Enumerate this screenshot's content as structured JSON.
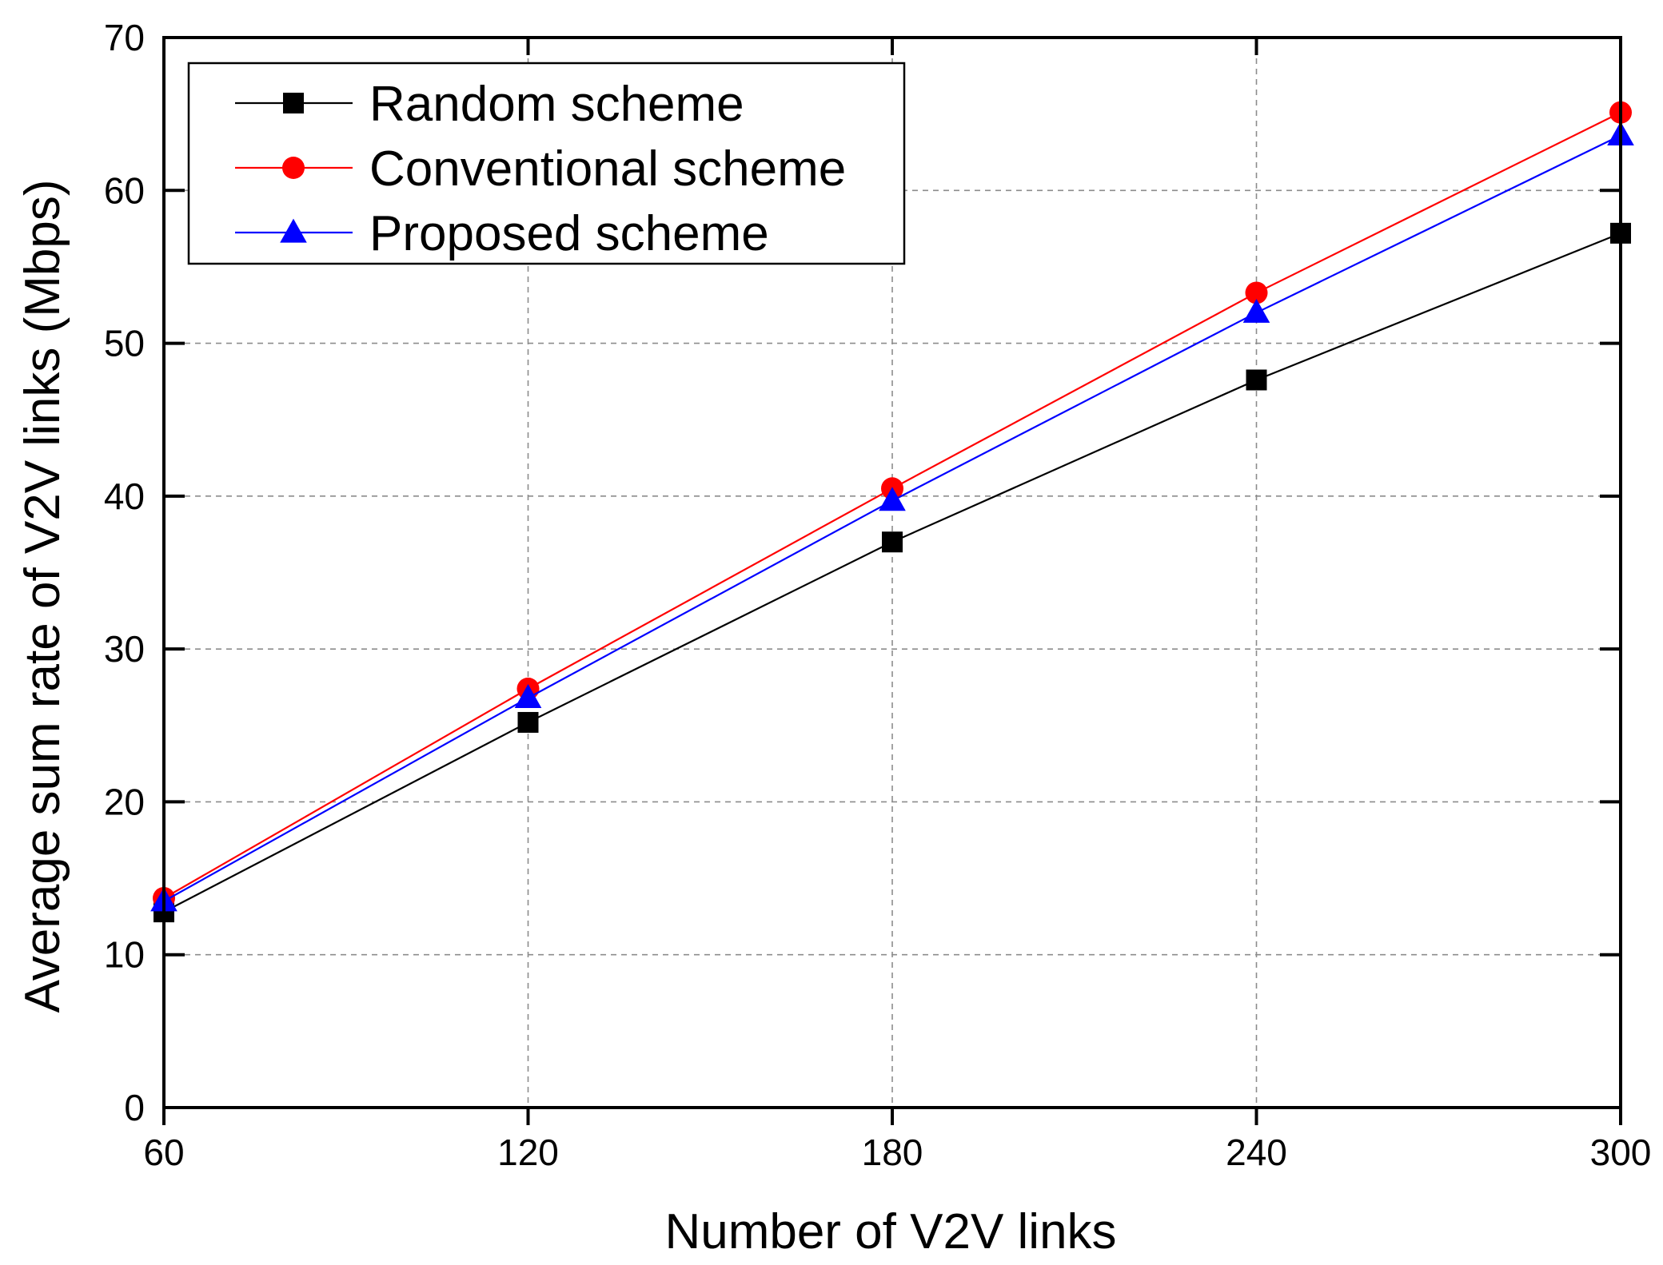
{
  "chart_data": {
    "type": "line",
    "title": "",
    "xlabel": "Number of V2V links",
    "ylabel": "Average sum rate of V2V links (Mbps)",
    "x": [
      60,
      120,
      180,
      240,
      300
    ],
    "xticks": [
      "60",
      "120",
      "180",
      "240",
      "300"
    ],
    "xlim": [
      60,
      300
    ],
    "yticks": [
      "0",
      "10",
      "20",
      "30",
      "40",
      "50",
      "60",
      "70"
    ],
    "ylim": [
      0,
      70
    ],
    "grid": true,
    "legend_position": "top-left",
    "series": [
      {
        "name": "Random scheme",
        "values": [
          12.8,
          25.2,
          37.0,
          47.6,
          57.2
        ],
        "color": "#000000",
        "marker": "square"
      },
      {
        "name": "Conventional scheme",
        "values": [
          13.7,
          27.4,
          40.5,
          53.3,
          65.1
        ],
        "color": "#ff0000",
        "marker": "circle"
      },
      {
        "name": "Proposed scheme",
        "values": [
          13.5,
          26.8,
          39.7,
          52.0,
          63.6
        ],
        "color": "#0000ff",
        "marker": "triangle"
      }
    ]
  }
}
